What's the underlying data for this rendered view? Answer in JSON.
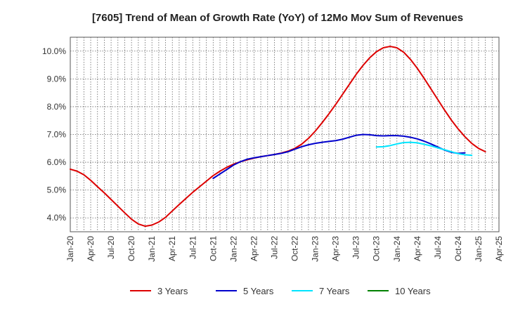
{
  "chart_data": {
    "type": "line",
    "title": "[7605]  Trend of Mean of Growth Rate (YoY) of 12Mo Mov Sum of Revenues",
    "xlabel": "",
    "ylabel": "",
    "ylim": [
      3.5,
      10.5
    ],
    "y_ticks": [
      4.0,
      5.0,
      6.0,
      7.0,
      8.0,
      9.0,
      10.0
    ],
    "y_tick_labels": [
      "4.0%",
      "5.0%",
      "6.0%",
      "7.0%",
      "8.0%",
      "9.0%",
      "10.0%"
    ],
    "x_ticks": [
      "Jan-20",
      "Apr-20",
      "Jul-20",
      "Oct-20",
      "Jan-21",
      "Apr-21",
      "Jul-21",
      "Oct-21",
      "Jan-22",
      "Apr-22",
      "Jul-22",
      "Oct-22",
      "Jan-23",
      "Apr-23",
      "Jul-23",
      "Oct-23",
      "Jan-24",
      "Apr-24",
      "Jul-24",
      "Oct-24",
      "Jan-25",
      "Apr-25"
    ],
    "grid": true,
    "legend_position": "bottom",
    "series": [
      {
        "name": "3 Years",
        "color": "#dd0000",
        "start": "Jan-20",
        "values": [
          5.75,
          5.68,
          5.55,
          5.35,
          5.12,
          4.9,
          4.66,
          4.42,
          4.18,
          3.95,
          3.78,
          3.7,
          3.74,
          3.85,
          4.02,
          4.25,
          4.48,
          4.7,
          4.92,
          5.12,
          5.32,
          5.52,
          5.68,
          5.82,
          5.93,
          6.02,
          6.09,
          6.15,
          6.2,
          6.24,
          6.28,
          6.33,
          6.4,
          6.5,
          6.65,
          6.86,
          7.12,
          7.42,
          7.74,
          8.08,
          8.44,
          8.8,
          9.16,
          9.48,
          9.76,
          9.98,
          10.12,
          10.17,
          10.12,
          9.96,
          9.7,
          9.38,
          9.02,
          8.64,
          8.26,
          7.88,
          7.52,
          7.2,
          6.92,
          6.68,
          6.5,
          6.38
        ]
      },
      {
        "name": "5 Years",
        "color": "#0000cc",
        "start": "Oct-21",
        "values": [
          5.42,
          5.58,
          5.74,
          5.9,
          6.02,
          6.11,
          6.16,
          6.2,
          6.24,
          6.28,
          6.32,
          6.38,
          6.47,
          6.56,
          6.63,
          6.68,
          6.72,
          6.75,
          6.78,
          6.83,
          6.9,
          6.97,
          7.0,
          6.99,
          6.96,
          6.95,
          6.96,
          6.96,
          6.94,
          6.9,
          6.84,
          6.76,
          6.66,
          6.55,
          6.44,
          6.36,
          6.32,
          6.34
        ]
      },
      {
        "name": "7 Years",
        "color": "#00e5ff",
        "start": "Oct-23",
        "values": [
          6.55,
          6.56,
          6.6,
          6.66,
          6.71,
          6.72,
          6.7,
          6.65,
          6.59,
          6.52,
          6.45,
          6.38,
          6.31,
          6.27,
          6.25
        ]
      },
      {
        "name": "10 Years",
        "color": "#008000",
        "start": "Jan-20",
        "values": []
      }
    ]
  }
}
